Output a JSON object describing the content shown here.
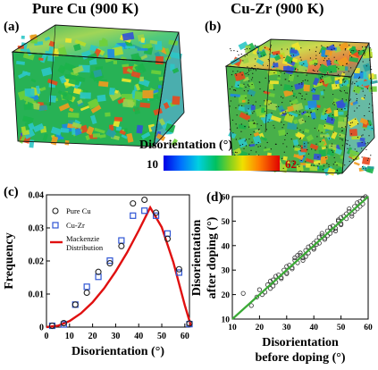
{
  "titles": {
    "left": "Pure Cu (900 K)",
    "right": "Cu-Zr (900 K)"
  },
  "panel_labels": {
    "a": "(a)",
    "b": "(b)",
    "c": "(c)",
    "d": "(d)"
  },
  "colorbar": {
    "title": "Disorientation (°)",
    "min": "10",
    "max": "62"
  },
  "colors": {
    "purecu": "#222222",
    "cuzr": "#2f55d4",
    "mackenzie": "#e01010",
    "fit": "#3aaa35",
    "d_points": "#333333"
  },
  "chart_data": [
    {
      "type": "scatter",
      "panel": "c",
      "xlabel": "Disorientation (°)",
      "ylabel": "Frequency",
      "xlim": [
        0,
        62
      ],
      "ylim": [
        0,
        0.04
      ],
      "xticks": [
        0,
        10,
        20,
        30,
        40,
        50,
        60
      ],
      "yticks": [
        0,
        0.01,
        0.02,
        0.03,
        0.04
      ],
      "ytick_labels": [
        "0",
        "0.01",
        "0.02",
        "0.03",
        "0.04"
      ],
      "legend": {
        "placement": "top-left",
        "entries": [
          "Pure Cu",
          "Cu-Zr",
          "Mackenzie\nDistribution"
        ]
      },
      "series": [
        {
          "name": "Pure Cu",
          "marker": "circle",
          "x": [
            2.5,
            7.5,
            12.5,
            17.5,
            22.5,
            27.5,
            32.5,
            37.5,
            42.5,
            47.5,
            52.5,
            57.5,
            62
          ],
          "y": [
            0.0004,
            0.0012,
            0.0068,
            0.0104,
            0.0167,
            0.0193,
            0.0245,
            0.0374,
            0.0385,
            0.0346,
            0.0267,
            0.0175,
            0.0011
          ]
        },
        {
          "name": "Cu-Zr",
          "marker": "square",
          "x": [
            2.5,
            7.5,
            12.5,
            17.5,
            22.5,
            27.5,
            32.5,
            37.5,
            42.5,
            47.5,
            52.5,
            57.5,
            62
          ],
          "y": [
            0.0004,
            0.0008,
            0.0068,
            0.0122,
            0.0152,
            0.0201,
            0.0262,
            0.0337,
            0.0352,
            0.0337,
            0.0283,
            0.0165,
            0.0009
          ]
        },
        {
          "name": "Mackenzie\nDistribution",
          "style": "line",
          "x": [
            0,
            5,
            10,
            15,
            20,
            25,
            30,
            35,
            40,
            45,
            50,
            55,
            60,
            62.8
          ],
          "y": [
            0,
            0.0004,
            0.0018,
            0.0042,
            0.0075,
            0.0117,
            0.0168,
            0.0226,
            0.0292,
            0.0362,
            0.0302,
            0.0197,
            0.0066,
            0
          ]
        }
      ]
    },
    {
      "type": "scatter",
      "panel": "d",
      "xlabel": "Disorientation\nbefore doping (°)",
      "ylabel": "Disorientation\nafter doping (°)",
      "xlim": [
        10,
        60
      ],
      "ylim": [
        10,
        60
      ],
      "xticks": [
        10,
        20,
        30,
        40,
        50,
        60
      ],
      "yticks": [
        10,
        20,
        30,
        40,
        50,
        60
      ],
      "fit_line": {
        "x": [
          10,
          60
        ],
        "y": [
          10,
          60
        ]
      },
      "points": {
        "x": [
          14,
          17,
          19,
          20,
          22,
          23,
          24,
          25,
          26,
          27,
          28,
          29,
          30,
          31,
          32,
          33,
          34,
          35,
          36,
          37,
          38,
          39,
          40,
          41,
          42,
          43,
          44,
          45,
          46,
          47,
          48,
          49,
          50,
          51,
          52,
          53,
          54,
          55,
          56,
          57,
          58,
          59,
          21,
          24,
          26,
          28,
          30,
          32,
          34,
          36,
          38,
          40,
          42,
          44,
          46,
          48,
          50,
          52,
          54,
          56,
          58,
          25,
          30,
          35,
          40,
          45,
          50,
          55,
          33,
          37,
          41,
          43,
          47,
          49,
          53,
          57
        ],
        "y": [
          20.5,
          15.5,
          19,
          22,
          21,
          24,
          22.5,
          26,
          25,
          28,
          27,
          30,
          29,
          32,
          31,
          34,
          33,
          36,
          35,
          38,
          37,
          40,
          39,
          42,
          41,
          44,
          43,
          46,
          45,
          48,
          47,
          50,
          49,
          52,
          51,
          54,
          53,
          56,
          55,
          58,
          57,
          60,
          20,
          25.5,
          27.5,
          26.5,
          31.5,
          30.5,
          36,
          34,
          39.5,
          41,
          43.5,
          42.5,
          47.5,
          46,
          51.5,
          53,
          52,
          57.5,
          59,
          23.5,
          28.5,
          37,
          38.5,
          44,
          48.5,
          54,
          35,
          35.5,
          40.5,
          45,
          46.5,
          50.5,
          55,
          56
        ]
      }
    }
  ]
}
